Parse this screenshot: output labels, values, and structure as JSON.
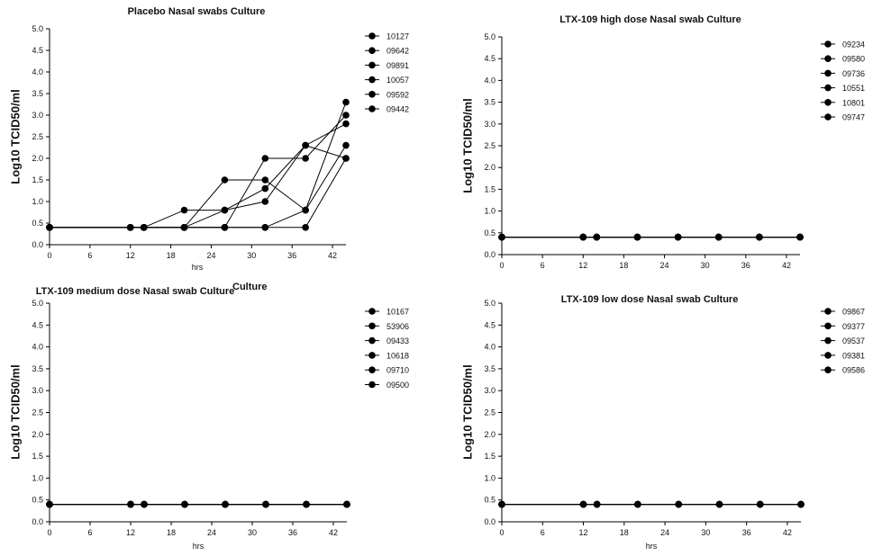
{
  "stray_label": "Culture",
  "chart_data": [
    {
      "type": "line",
      "title": "Placebo Nasal swabs Culture",
      "xlabel": "hrs",
      "ylabel": "Log10 TCID50/ml",
      "xlim": [
        0,
        44
      ],
      "ylim": [
        0,
        5
      ],
      "xticks": [
        "0",
        "6",
        "12",
        "18",
        "24",
        "30",
        "36",
        "42"
      ],
      "yticks": [
        "0.0",
        "0.5",
        "1.0",
        "1.5",
        "2.0",
        "2.5",
        "3.0",
        "3.5",
        "4.0",
        "4.5",
        "5.0"
      ],
      "legend": "right",
      "series": [
        {
          "name": "10127",
          "points": [
            [
              0,
              0.4
            ],
            [
              12,
              0.4
            ],
            [
              14,
              0.4
            ],
            [
              20,
              0.4
            ],
            [
              26,
              0.4
            ],
            [
              32,
              0.4
            ],
            [
              38,
              0.4
            ],
            [
              44,
              2.0
            ]
          ]
        },
        {
          "name": "09642",
          "points": [
            [
              0,
              0.4
            ],
            [
              12,
              0.4
            ],
            [
              14,
              0.4
            ],
            [
              20,
              0.4
            ],
            [
              26,
              0.8
            ],
            [
              32,
              1.3
            ],
            [
              38,
              2.3
            ],
            [
              44,
              2.0
            ]
          ]
        },
        {
          "name": "09891",
          "points": [
            [
              0,
              0.4
            ],
            [
              12,
              0.4
            ],
            [
              14,
              0.4
            ],
            [
              20,
              0.4
            ],
            [
              26,
              0.4
            ],
            [
              32,
              2.0
            ],
            [
              38,
              2.0
            ],
            [
              44,
              3.0
            ]
          ]
        },
        {
          "name": "10057",
          "points": [
            [
              0,
              0.4
            ],
            [
              12,
              0.4
            ],
            [
              14,
              0.4
            ],
            [
              20,
              0.4
            ],
            [
              26,
              1.5
            ],
            [
              32,
              1.5
            ],
            [
              38,
              0.8
            ],
            [
              44,
              3.3
            ]
          ]
        },
        {
          "name": "09592",
          "points": [
            [
              0,
              0.4
            ],
            [
              12,
              0.4
            ],
            [
              14,
              0.4
            ],
            [
              20,
              0.8
            ],
            [
              26,
              0.8
            ],
            [
              32,
              1.0
            ],
            [
              38,
              2.3
            ],
            [
              44,
              2.8
            ]
          ]
        },
        {
          "name": "09442",
          "points": [
            [
              0,
              0.4
            ],
            [
              12,
              0.4
            ],
            [
              14,
              0.4
            ],
            [
              20,
              0.4
            ],
            [
              26,
              0.4
            ],
            [
              32,
              0.4
            ],
            [
              38,
              0.8
            ],
            [
              44,
              2.3
            ]
          ]
        }
      ]
    },
    {
      "type": "line",
      "title": "LTX-109 high dose Nasal swab Culture",
      "xlabel": "",
      "ylabel": "Log10 TCID50/ml",
      "xlim": [
        0,
        44
      ],
      "ylim": [
        0,
        5
      ],
      "xticks": [
        "0",
        "6",
        "12",
        "18",
        "24",
        "30",
        "36",
        "42"
      ],
      "yticks": [
        "0.0",
        "0.5",
        "1.0",
        "1.5",
        "2.0",
        "2.5",
        "3.0",
        "3.5",
        "4.0",
        "4.5",
        "5.0"
      ],
      "legend": "right",
      "series": [
        {
          "name": "09234",
          "points": [
            [
              0,
              0.4
            ],
            [
              12,
              0.4
            ],
            [
              14,
              0.4
            ],
            [
              20,
              0.4
            ],
            [
              26,
              0.4
            ],
            [
              32,
              0.4
            ],
            [
              38,
              0.4
            ],
            [
              44,
              0.4
            ]
          ]
        },
        {
          "name": "09580",
          "points": [
            [
              0,
              0.4
            ],
            [
              12,
              0.4
            ],
            [
              14,
              0.4
            ],
            [
              20,
              0.4
            ],
            [
              26,
              0.4
            ],
            [
              32,
              0.4
            ],
            [
              38,
              0.4
            ],
            [
              44,
              0.4
            ]
          ]
        },
        {
          "name": "09736",
          "points": [
            [
              0,
              0.4
            ],
            [
              12,
              0.4
            ],
            [
              14,
              0.4
            ],
            [
              20,
              0.4
            ],
            [
              26,
              0.4
            ],
            [
              32,
              0.4
            ],
            [
              38,
              0.4
            ],
            [
              44,
              0.4
            ]
          ]
        },
        {
          "name": "10551",
          "points": [
            [
              0,
              0.4
            ],
            [
              12,
              0.4
            ],
            [
              14,
              0.4
            ],
            [
              20,
              0.4
            ],
            [
              26,
              0.4
            ],
            [
              32,
              0.4
            ],
            [
              38,
              0.4
            ],
            [
              44,
              0.4
            ]
          ]
        },
        {
          "name": "10801",
          "points": [
            [
              0,
              0.4
            ],
            [
              12,
              0.4
            ],
            [
              14,
              0.4
            ],
            [
              20,
              0.4
            ],
            [
              26,
              0.4
            ],
            [
              32,
              0.4
            ],
            [
              38,
              0.4
            ],
            [
              44,
              0.4
            ]
          ]
        },
        {
          "name": "09747",
          "points": [
            [
              0,
              0.4
            ],
            [
              12,
              0.4
            ],
            [
              14,
              0.4
            ],
            [
              20,
              0.4
            ],
            [
              26,
              0.4
            ],
            [
              32,
              0.4
            ],
            [
              38,
              0.4
            ],
            [
              44,
              0.4
            ]
          ]
        }
      ]
    },
    {
      "type": "line",
      "title": "LTX-109 medium dose Nasal swab Culture",
      "xlabel": "hrs",
      "ylabel": "Log10 TCID50/ml",
      "xlim": [
        0,
        44
      ],
      "ylim": [
        0,
        5
      ],
      "xticks": [
        "0",
        "6",
        "12",
        "18",
        "24",
        "30",
        "36",
        "42"
      ],
      "yticks": [
        "0.0",
        "0.5",
        "1.0",
        "1.5",
        "2.0",
        "2.5",
        "3.0",
        "3.5",
        "4.0",
        "4.5",
        "5.0"
      ],
      "legend": "right",
      "series": [
        {
          "name": "10167",
          "points": [
            [
              0,
              0.4
            ],
            [
              12,
              0.4
            ],
            [
              14,
              0.4
            ],
            [
              20,
              0.4
            ],
            [
              26,
              0.4
            ],
            [
              32,
              0.4
            ],
            [
              38,
              0.4
            ],
            [
              44,
              0.4
            ]
          ]
        },
        {
          "name": "53906",
          "points": [
            [
              0,
              0.4
            ],
            [
              12,
              0.4
            ],
            [
              14,
              0.4
            ],
            [
              20,
              0.4
            ],
            [
              26,
              0.4
            ],
            [
              32,
              0.4
            ],
            [
              38,
              0.4
            ],
            [
              44,
              0.4
            ]
          ]
        },
        {
          "name": "09433",
          "points": [
            [
              0,
              0.4
            ],
            [
              12,
              0.4
            ],
            [
              14,
              0.4
            ],
            [
              20,
              0.4
            ],
            [
              26,
              0.4
            ],
            [
              32,
              0.4
            ],
            [
              38,
              0.4
            ],
            [
              44,
              0.4
            ]
          ]
        },
        {
          "name": "10618",
          "points": [
            [
              0,
              0.4
            ],
            [
              12,
              0.4
            ],
            [
              14,
              0.4
            ],
            [
              20,
              0.4
            ],
            [
              26,
              0.4
            ],
            [
              32,
              0.4
            ],
            [
              38,
              0.4
            ],
            [
              44,
              0.4
            ]
          ]
        },
        {
          "name": "09710",
          "points": [
            [
              0,
              0.4
            ],
            [
              12,
              0.4
            ],
            [
              14,
              0.4
            ],
            [
              20,
              0.4
            ],
            [
              26,
              0.4
            ],
            [
              32,
              0.4
            ],
            [
              38,
              0.4
            ],
            [
              44,
              0.4
            ]
          ]
        },
        {
          "name": "09500",
          "points": [
            [
              0,
              0.4
            ],
            [
              12,
              0.4
            ],
            [
              14,
              0.4
            ],
            [
              20,
              0.4
            ],
            [
              26,
              0.4
            ],
            [
              32,
              0.4
            ],
            [
              38,
              0.4
            ],
            [
              44,
              0.4
            ]
          ]
        }
      ]
    },
    {
      "type": "line",
      "title": "LTX-109 low dose Nasal swab Culture",
      "xlabel": "hrs",
      "ylabel": "Log10 TCID50/ml",
      "xlim": [
        0,
        44
      ],
      "ylim": [
        0,
        5
      ],
      "xticks": [
        "0",
        "6",
        "12",
        "18",
        "24",
        "30",
        "36",
        "42"
      ],
      "yticks": [
        "0.0",
        "0.5",
        "1.0",
        "1.5",
        "2.0",
        "2.5",
        "3.0",
        "3.5",
        "4.0",
        "4.5",
        "5.0"
      ],
      "legend": "right",
      "series": [
        {
          "name": "09867",
          "points": [
            [
              0,
              0.4
            ],
            [
              12,
              0.4
            ],
            [
              14,
              0.4
            ],
            [
              20,
              0.4
            ],
            [
              26,
              0.4
            ],
            [
              32,
              0.4
            ],
            [
              38,
              0.4
            ],
            [
              44,
              0.4
            ]
          ]
        },
        {
          "name": "09377",
          "points": [
            [
              0,
              0.4
            ],
            [
              12,
              0.4
            ],
            [
              14,
              0.4
            ],
            [
              20,
              0.4
            ],
            [
              26,
              0.4
            ],
            [
              32,
              0.4
            ],
            [
              38,
              0.4
            ],
            [
              44,
              0.4
            ]
          ]
        },
        {
          "name": "09537",
          "points": [
            [
              0,
              0.4
            ],
            [
              12,
              0.4
            ],
            [
              14,
              0.4
            ],
            [
              20,
              0.4
            ],
            [
              26,
              0.4
            ],
            [
              32,
              0.4
            ],
            [
              38,
              0.4
            ],
            [
              44,
              0.4
            ]
          ]
        },
        {
          "name": "09381",
          "points": [
            [
              0,
              0.4
            ],
            [
              12,
              0.4
            ],
            [
              14,
              0.4
            ],
            [
              20,
              0.4
            ],
            [
              26,
              0.4
            ],
            [
              32,
              0.4
            ],
            [
              38,
              0.4
            ],
            [
              44,
              0.4
            ]
          ]
        },
        {
          "name": "09586",
          "points": [
            [
              0,
              0.4
            ],
            [
              12,
              0.4
            ],
            [
              14,
              0.4
            ],
            [
              20,
              0.4
            ],
            [
              26,
              0.4
            ],
            [
              32,
              0.4
            ],
            [
              38,
              0.4
            ],
            [
              44,
              0.4
            ]
          ]
        }
      ]
    }
  ]
}
